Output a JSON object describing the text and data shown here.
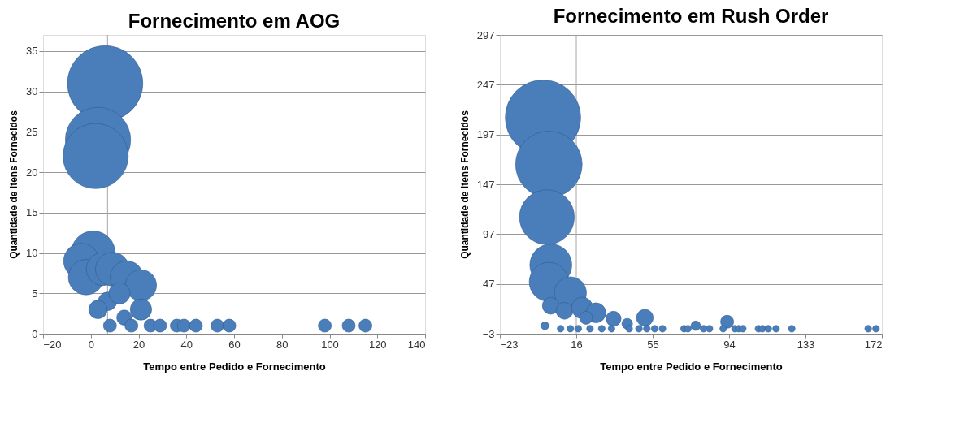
{
  "chart_data": [
    {
      "type": "bubble",
      "title": "Fornecimento em AOG",
      "xlabel": "Tempo entre Pedido e Fornecimento",
      "ylabel": "Quantidade de Itens Fornecidos",
      "xlim": [
        -20,
        140
      ],
      "xticks": [
        -20,
        0,
        20,
        40,
        60,
        80,
        100,
        120,
        140
      ],
      "ylim": [
        0,
        37
      ],
      "yticks": [
        0,
        5,
        10,
        15,
        20,
        25,
        30,
        35
      ],
      "grid": "y",
      "ref_lines": [
        {
          "axis": "x",
          "value": 7,
          "color": "#a6a6a6"
        }
      ],
      "series": [
        {
          "color": "#4a7ebb",
          "x": [
            6,
            3,
            2,
            1,
            -4,
            -2,
            5,
            9,
            15,
            21,
            7,
            12,
            3,
            14,
            21,
            8,
            17,
            25,
            29,
            36,
            39,
            44,
            53,
            58,
            98,
            108,
            115
          ],
          "values": [
            31,
            24,
            22,
            10,
            9,
            7,
            8,
            8,
            7,
            6,
            4,
            5,
            3,
            2,
            3,
            1,
            1,
            1,
            1,
            1,
            1,
            1,
            1,
            1,
            1,
            1,
            1
          ],
          "sizes": [
            1,
            0.75,
            0.75,
            0.34,
            0.22,
            0.22,
            0.19,
            0.2,
            0.19,
            0.17,
            0.06,
            0.08,
            0.06,
            0.04,
            0.08,
            0.03,
            0.03,
            0.03,
            0.03,
            0.03,
            0.03,
            0.03,
            0.03,
            0.03,
            0.03,
            0.03,
            0.03
          ]
        }
      ]
    },
    {
      "type": "bubble",
      "title": "Fornecimento em Rush Order",
      "xlabel": "Tempo entre Pedido e Fornecimento",
      "ylabel": "Quantidade de Itens Fornecidos",
      "xlim": [
        -23,
        172
      ],
      "xticks": [
        -23,
        16,
        55,
        94,
        133,
        172
      ],
      "ylim": [
        -3,
        297
      ],
      "yticks": [
        -3,
        47,
        97,
        147,
        197,
        247,
        297
      ],
      "grid": "y",
      "ref_lines": [
        {
          "axis": "x",
          "value": 16,
          "color": "#a6a6a6"
        }
      ],
      "series": [
        {
          "color": "#4a7ebb",
          "x": [
            -1,
            2,
            1,
            3,
            2,
            13,
            3,
            10,
            19,
            26,
            21,
            35,
            42,
            51,
            77,
            93,
            0,
            8,
            13,
            17,
            23,
            29,
            34,
            43,
            48,
            52,
            56,
            60,
            71,
            73,
            81,
            84,
            91,
            97,
            99,
            101,
            109,
            111,
            114,
            118,
            126,
            165,
            169
          ],
          "values": [
            214,
            167,
            114,
            66,
            49,
            38,
            25,
            20,
            23,
            18,
            13,
            12,
            7,
            13,
            5,
            9,
            5,
            2,
            2,
            2,
            2,
            2,
            2,
            2,
            2,
            2,
            2,
            2,
            2,
            2,
            2,
            2,
            2,
            2,
            2,
            2,
            2,
            2,
            2,
            2,
            2,
            2,
            2
          ],
          "sizes": [
            1,
            0.78,
            0.53,
            0.31,
            0.27,
            0.18,
            0.05,
            0.05,
            0.08,
            0.07,
            0.03,
            0.04,
            0.02,
            0.05,
            0.016,
            0.03,
            0.011,
            0.008,
            0.008,
            0.008,
            0.008,
            0.008,
            0.008,
            0.008,
            0.008,
            0.008,
            0.008,
            0.008,
            0.008,
            0.008,
            0.008,
            0.008,
            0.008,
            0.008,
            0.008,
            0.008,
            0.008,
            0.008,
            0.008,
            0.008,
            0.008,
            0.008,
            0.008
          ]
        }
      ]
    }
  ]
}
